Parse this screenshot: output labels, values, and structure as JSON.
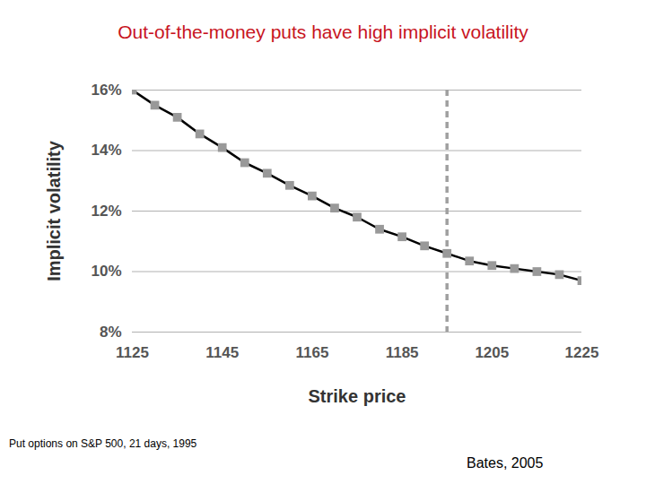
{
  "chart_data": {
    "type": "line",
    "title": "Out-of-the-money puts have high implicit volatility",
    "xlabel": "Strike price",
    "ylabel": "Implicit volatility",
    "caption": "Put options on S&P 500, 21 days, 1995",
    "source": "Bates, 2005",
    "x": [
      1125,
      1130,
      1135,
      1140,
      1145,
      1150,
      1155,
      1160,
      1165,
      1170,
      1175,
      1180,
      1185,
      1190,
      1195,
      1200,
      1205,
      1210,
      1215,
      1220,
      1225
    ],
    "values": [
      16.0,
      15.5,
      15.1,
      14.55,
      14.1,
      13.6,
      13.25,
      12.85,
      12.5,
      12.1,
      11.8,
      11.4,
      11.15,
      10.85,
      10.6,
      10.35,
      10.2,
      10.1,
      10.0,
      9.9,
      9.7
    ],
    "color": "#000000",
    "marker": "square",
    "xlim": [
      1125,
      1225
    ],
    "xticks": [
      1125,
      1145,
      1165,
      1185,
      1205,
      1225
    ],
    "ylim": [
      8,
      16
    ],
    "yticks": [
      {
        "value": 8,
        "label": "8%"
      },
      {
        "value": 10,
        "label": "10%"
      },
      {
        "value": 12,
        "label": "12%"
      },
      {
        "value": 14,
        "label": "14%"
      },
      {
        "value": 16,
        "label": "16%"
      }
    ],
    "grid": true,
    "vline": {
      "x": 1195,
      "line_style": "dashed"
    }
  }
}
